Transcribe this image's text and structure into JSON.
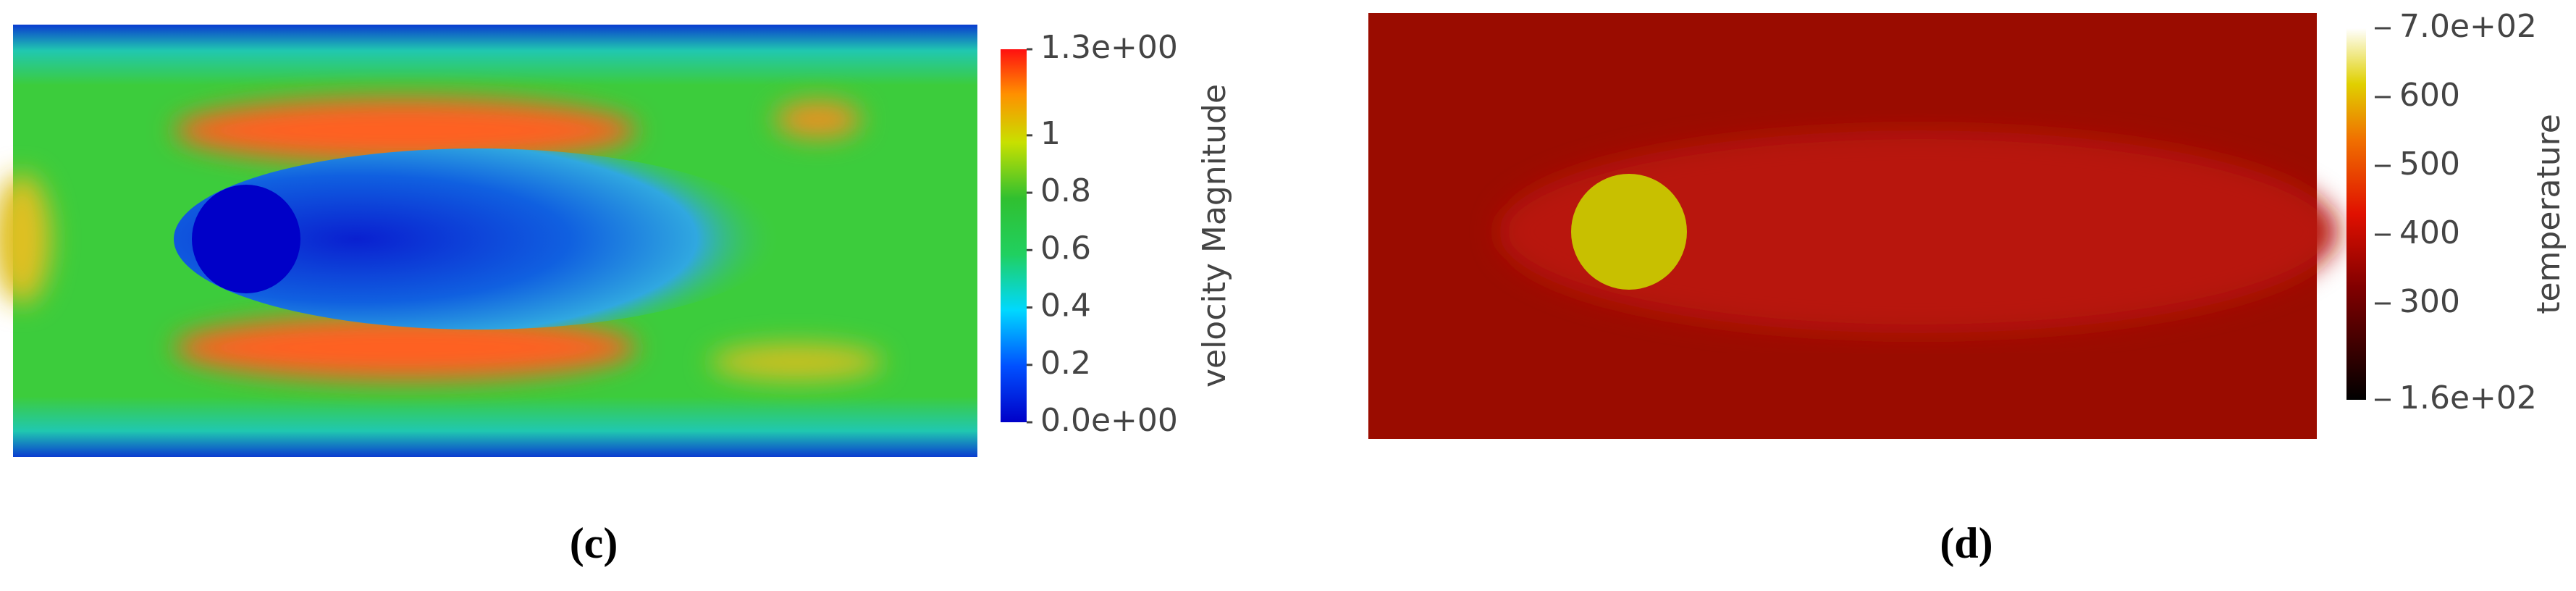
{
  "panels": [
    {
      "caption": "(c)",
      "colorbar": {
        "title": "velocity Magnitude",
        "range": [
          0,
          1.3
        ],
        "ticks": [
          {
            "value": 0,
            "label": "0.0e+00"
          },
          0.2,
          0.4,
          0.6,
          0.8,
          1,
          {
            "value": 1.3,
            "label": "1.3e+00"
          }
        ]
      }
    },
    {
      "caption": "(d)",
      "colorbar": {
        "title": "temperature",
        "range": [
          160,
          700
        ],
        "ticks": [
          {
            "value": 160,
            "label": "1.6e+02"
          },
          300,
          400,
          500,
          600,
          {
            "value": 700,
            "label": "7.0e+02"
          }
        ]
      }
    }
  ]
}
